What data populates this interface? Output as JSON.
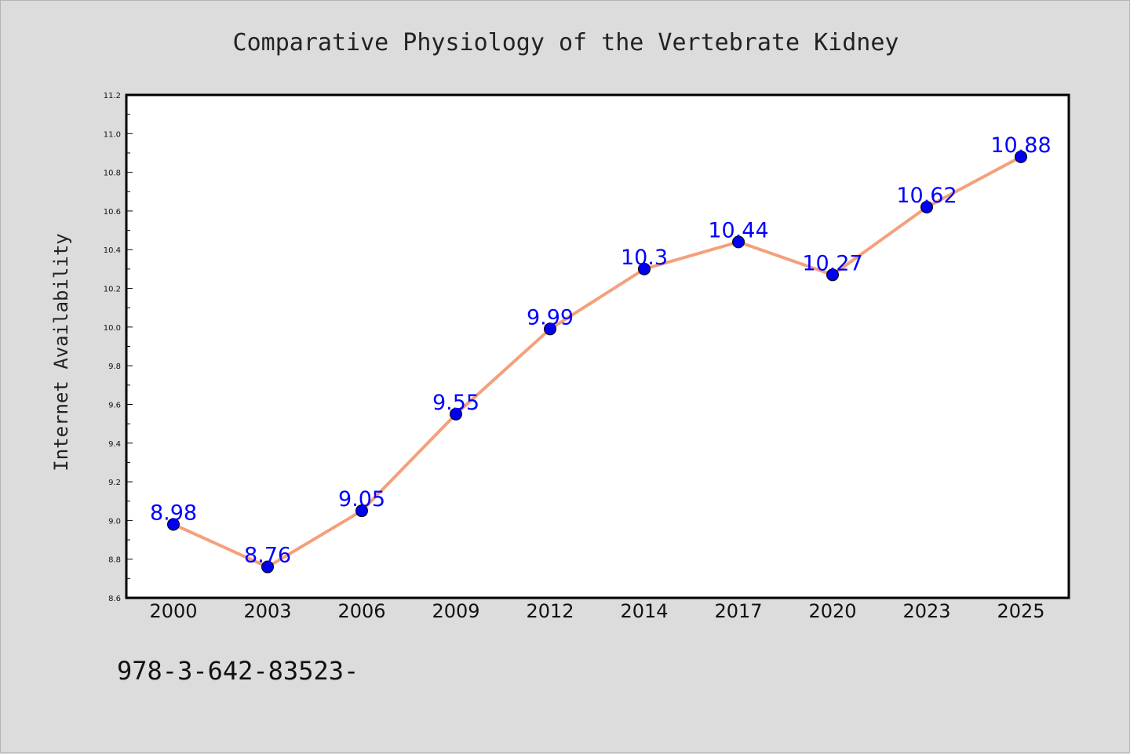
{
  "chart_data": {
    "type": "line",
    "title": "Comparative Physiology of the Vertebrate Kidney",
    "xlabel": "",
    "ylabel": "Internet Availability",
    "categories": [
      "2000",
      "2003",
      "2006",
      "2009",
      "2012",
      "2014",
      "2017",
      "2020",
      "2023",
      "2025"
    ],
    "series": [
      {
        "values": [
          8.98,
          8.76,
          9.05,
          9.55,
          9.99,
          10.3,
          10.44,
          10.27,
          10.62,
          10.88
        ],
        "labels": [
          "8.98",
          "8.76",
          "9.05",
          "9.55",
          "9.99",
          "10.3",
          "10.44",
          "10.27",
          "10.62",
          "10.88"
        ],
        "line_color": "#f4a07a",
        "marker_color": "#0000ee"
      }
    ],
    "ylim": [
      8.6,
      11.2
    ],
    "yticks": [
      "8.6",
      "8.8",
      "9.0",
      "9.2",
      "9.4",
      "9.6",
      "9.8",
      "10.0",
      "10.2",
      "10.4",
      "10.6",
      "10.8",
      "11.0",
      "11.2"
    ],
    "grid": false,
    "legend": "none"
  },
  "footer": {
    "text": "978-3-642-83523-"
  },
  "colors": {
    "background": "#dcdcdc",
    "plot_background": "#ffffff",
    "label_color": "#0000ff"
  }
}
